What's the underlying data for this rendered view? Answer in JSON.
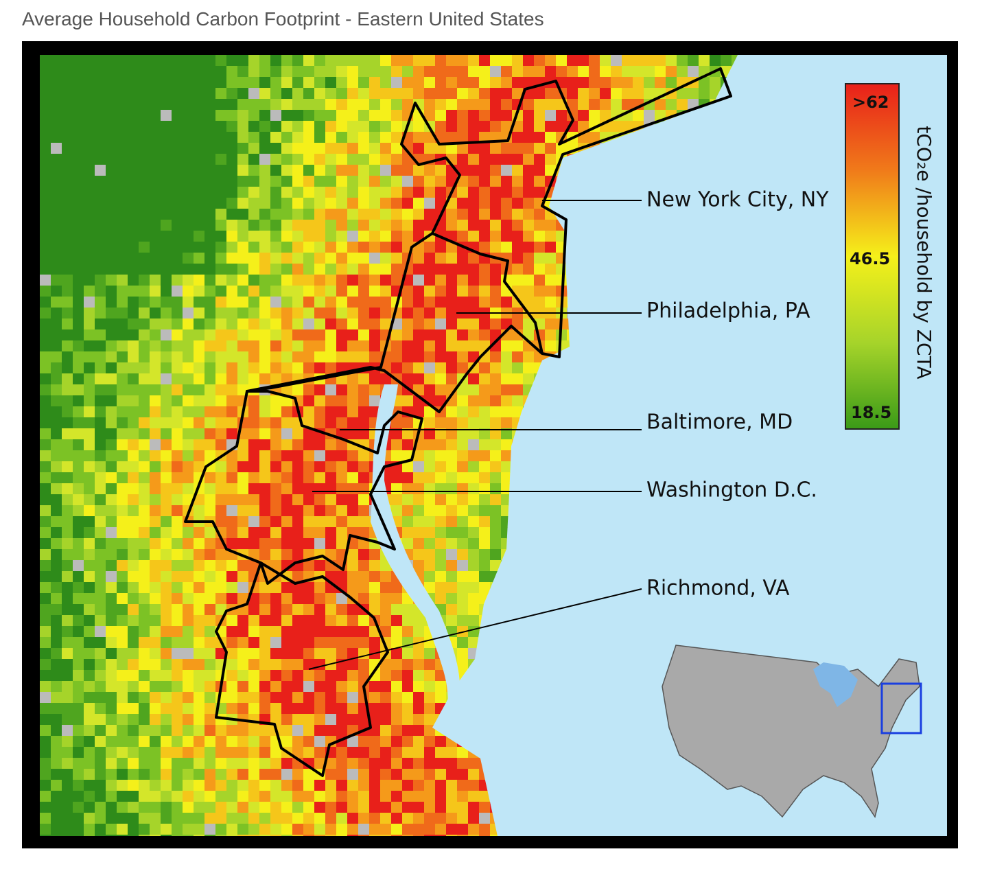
{
  "header": {
    "title": "Average Household Carbon Footprint - Eastern United States"
  },
  "legend": {
    "title": "tCO₂e /household by ZCTA",
    "labels": [
      ">62",
      "46.5",
      "18.5"
    ]
  },
  "cities": [
    "New York City, NY",
    "Philadelphia, PA",
    "Baltimore, MD",
    "Washington D.C.",
    "Richmond, VA"
  ]
}
